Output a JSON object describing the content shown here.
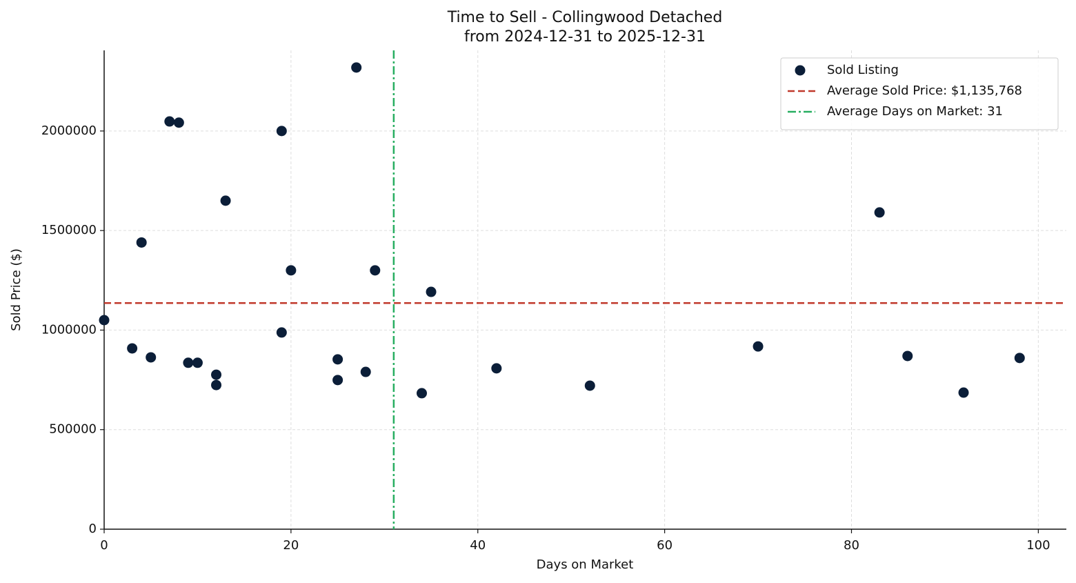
{
  "chart_data": {
    "type": "scatter",
    "title": "Time to Sell - Collingwood Detached",
    "subtitle": "from 2024-12-31 to 2025-12-31",
    "x_label": "Days on Market",
    "y_label": "Sold Price ($)",
    "xlim": [
      0,
      103
    ],
    "xticks": [
      0,
      20,
      40,
      60,
      80,
      100
    ],
    "ylim": [
      0,
      2405000
    ],
    "yticks": [
      0,
      500000,
      1000000,
      1500000,
      2000000
    ],
    "grid": true,
    "legend": "upper right",
    "series": [
      {
        "name": "Sold Listing",
        "color": "#0b1e38",
        "x": [
          0,
          3,
          4,
          5,
          7,
          8,
          9,
          10,
          12,
          12,
          13,
          19,
          19,
          20,
          25,
          25,
          27,
          28,
          29,
          34,
          35,
          42,
          52,
          70,
          83,
          86,
          92,
          98
        ],
        "values": [
          1050000,
          908000,
          1440000,
          863000,
          2048000,
          2042000,
          836000,
          836000,
          776000,
          724000,
          1650000,
          2000000,
          988000,
          1300000,
          853000,
          749000,
          2319000,
          790000,
          1300000,
          683000,
          1192000,
          808000,
          721000,
          918000,
          1591000,
          870000,
          686000,
          860000
        ]
      }
    ],
    "reference_lines": [
      {
        "name": "Average Sold Price: $1,135,768",
        "axis": "y",
        "value": 1135768,
        "color": "#c0392b",
        "style": "dashed"
      },
      {
        "name": "Average Days on Market: 31",
        "axis": "x",
        "value": 31,
        "color": "#27ae60",
        "style": "dashdot"
      }
    ]
  }
}
